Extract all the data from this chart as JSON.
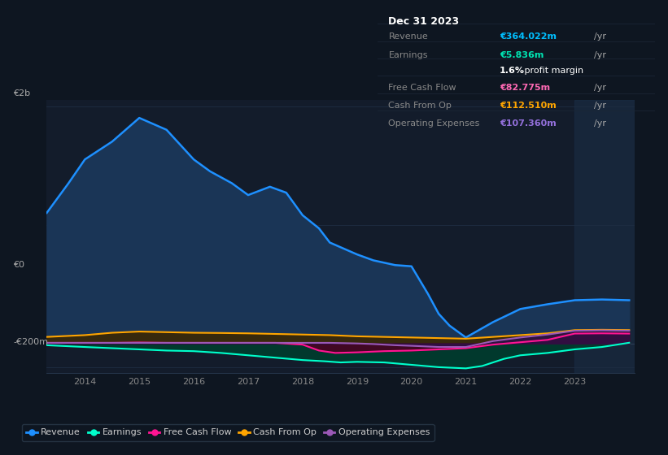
{
  "bg_color": "#0e1621",
  "plot_bg_color": "#131c2b",
  "grid_color": "#1e2d42",
  "title_box": {
    "date": "Dec 31 2023",
    "rows": [
      {
        "label": "Revenue",
        "value": "€364.022m",
        "unit": "/yr",
        "color": "#00bfff"
      },
      {
        "label": "Earnings",
        "value": "€5.836m",
        "unit": "/yr",
        "color": "#00e5b4"
      },
      {
        "label": "",
        "value": "1.6%",
        "unit": " profit margin",
        "color": "#ffffff"
      },
      {
        "label": "Free Cash Flow",
        "value": "€82.775m",
        "unit": "/yr",
        "color": "#ff69b4"
      },
      {
        "label": "Cash From Op",
        "value": "€112.510m",
        "unit": "/yr",
        "color": "#ffa500"
      },
      {
        "label": "Operating Expenses",
        "value": "€107.360m",
        "unit": "/yr",
        "color": "#9370db"
      }
    ]
  },
  "ylabel_top": "€2b",
  "ylabel_zero": "€0",
  "ylabel_bottom": "-€200m",
  "x_ticks": [
    2014,
    2015,
    2016,
    2017,
    2018,
    2019,
    2020,
    2021,
    2022,
    2023
  ],
  "series": {
    "revenue": {
      "color": "#1e90ff",
      "fill_color": "#1a3556",
      "label": "Revenue",
      "x": [
        2013.3,
        2013.7,
        2014.0,
        2014.5,
        2015.0,
        2015.5,
        2016.0,
        2016.3,
        2016.7,
        2017.0,
        2017.4,
        2017.7,
        2018.0,
        2018.3,
        2018.5,
        2019.0,
        2019.3,
        2019.7,
        2020.0,
        2020.3,
        2020.5,
        2020.7,
        2021.0,
        2021.5,
        2022.0,
        2022.5,
        2023.0,
        2023.5,
        2024.0
      ],
      "y": [
        1100,
        1350,
        1550,
        1700,
        1900,
        1800,
        1550,
        1450,
        1350,
        1250,
        1320,
        1270,
        1080,
        970,
        850,
        750,
        700,
        660,
        650,
        420,
        250,
        150,
        50,
        180,
        290,
        330,
        364,
        370,
        364
      ]
    },
    "earnings": {
      "color": "#00ffcc",
      "fill_color": "#003d2e",
      "label": "Earnings",
      "x": [
        2013.3,
        2014.0,
        2014.5,
        2015.0,
        2015.5,
        2016.0,
        2016.5,
        2017.0,
        2017.5,
        2018.0,
        2018.4,
        2018.7,
        2019.0,
        2019.5,
        2020.0,
        2020.5,
        2021.0,
        2021.3,
        2021.7,
        2022.0,
        2022.5,
        2023.0,
        2023.5,
        2024.0
      ],
      "y": [
        -15,
        -30,
        -40,
        -50,
        -60,
        -65,
        -80,
        -100,
        -120,
        -140,
        -150,
        -160,
        -155,
        -160,
        -180,
        -200,
        -210,
        -190,
        -130,
        -100,
        -80,
        -50,
        -30,
        5.836
      ]
    },
    "free_cash_flow": {
      "color": "#ff1493",
      "fill_color": "#4d0022",
      "label": "Free Cash Flow",
      "x": [
        2013.3,
        2014.0,
        2014.5,
        2015.0,
        2015.5,
        2016.0,
        2016.5,
        2017.0,
        2017.5,
        2018.0,
        2018.3,
        2018.6,
        2019.0,
        2019.5,
        2020.0,
        2020.5,
        2021.0,
        2021.5,
        2022.0,
        2022.5,
        2023.0,
        2023.5,
        2024.0
      ],
      "y": [
        5,
        5,
        5,
        8,
        5,
        5,
        5,
        5,
        5,
        -10,
        -60,
        -80,
        -75,
        -65,
        -60,
        -50,
        -40,
        -10,
        10,
        30,
        83,
        85,
        82.775
      ]
    },
    "cash_from_op": {
      "color": "#ffa500",
      "fill_color": "#3d2800",
      "label": "Cash From Op",
      "x": [
        2013.3,
        2014.0,
        2014.5,
        2015.0,
        2015.5,
        2016.0,
        2016.5,
        2017.0,
        2017.5,
        2018.0,
        2018.5,
        2019.0,
        2019.5,
        2020.0,
        2020.5,
        2021.0,
        2021.5,
        2022.0,
        2022.5,
        2023.0,
        2023.5,
        2024.0
      ],
      "y": [
        55,
        70,
        90,
        100,
        95,
        90,
        88,
        85,
        80,
        75,
        70,
        60,
        55,
        50,
        45,
        40,
        55,
        70,
        85,
        112,
        115,
        112.51
      ]
    },
    "operating_expenses": {
      "color": "#9b59b6",
      "fill_color": "#2d1047",
      "label": "Operating Expenses",
      "x": [
        2013.3,
        2014.0,
        2014.5,
        2015.0,
        2015.5,
        2016.0,
        2016.5,
        2017.0,
        2017.5,
        2018.0,
        2018.5,
        2019.0,
        2019.3,
        2019.7,
        2020.0,
        2020.5,
        2021.0,
        2021.5,
        2022.0,
        2022.5,
        2023.0,
        2023.5,
        2024.0
      ],
      "y": [
        5,
        5,
        5,
        5,
        5,
        5,
        5,
        5,
        5,
        5,
        5,
        0,
        -5,
        -15,
        -20,
        -30,
        -30,
        20,
        50,
        75,
        107,
        110,
        107.36
      ]
    }
  },
  "legend": [
    {
      "label": "Revenue",
      "color": "#1e90ff"
    },
    {
      "label": "Earnings",
      "color": "#00ffcc"
    },
    {
      "label": "Free Cash Flow",
      "color": "#ff1493"
    },
    {
      "label": "Cash From Op",
      "color": "#ffa500"
    },
    {
      "label": "Operating Expenses",
      "color": "#9b59b6"
    }
  ],
  "xlim": [
    2013.3,
    2024.1
  ],
  "ylim": [
    -250,
    2050
  ],
  "shaded_right_x": 2023.0
}
